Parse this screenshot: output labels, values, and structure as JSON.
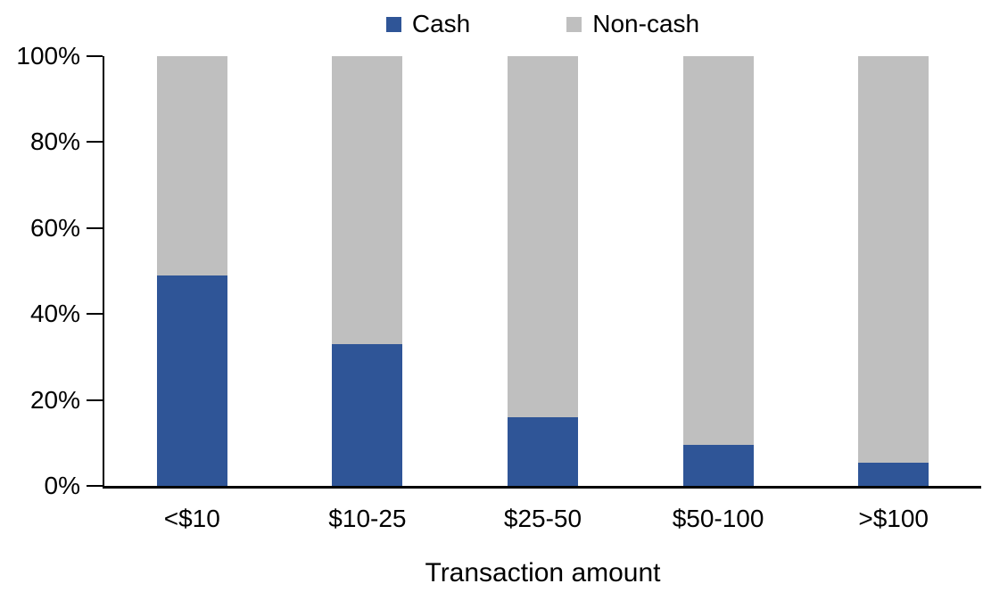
{
  "chart_data": {
    "type": "bar",
    "stacking": "percent",
    "title": "",
    "xlabel": "Transaction amount",
    "ylabel": "",
    "categories": [
      "<$10",
      "$10-25",
      "$25-50",
      "$50-100",
      ">$100"
    ],
    "series": [
      {
        "name": "Cash",
        "color": "#2F5597",
        "values": [
          49,
          33,
          16,
          9.5,
          5.5
        ]
      },
      {
        "name": "Non-cash",
        "color": "#BFBFBF",
        "values": [
          51,
          67,
          84,
          90.5,
          94.5
        ]
      }
    ],
    "y_axis": {
      "min": 0,
      "max": 100,
      "tick_interval": 20,
      "tick_labels_top_to_bottom": [
        "100%",
        "80%",
        "60%",
        "40%",
        "20%",
        "0%"
      ]
    },
    "legend_position": "top-center",
    "grid": false,
    "axis_color": "#000000",
    "background_color": "#FFFFFF"
  }
}
